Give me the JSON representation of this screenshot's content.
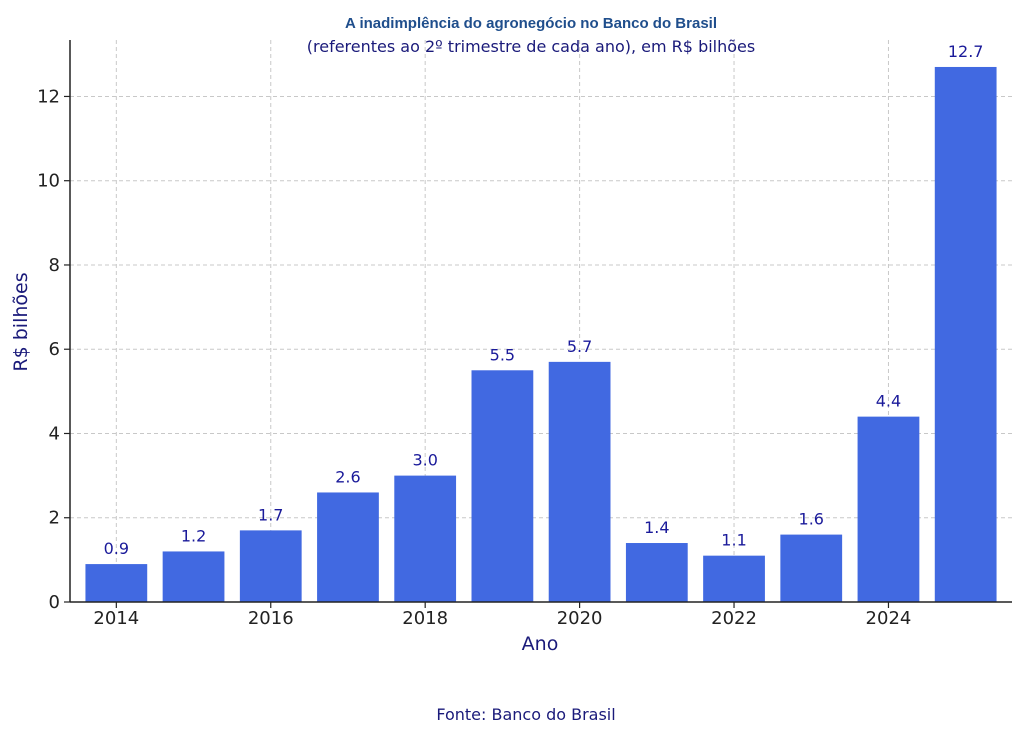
{
  "chart_data": {
    "type": "bar",
    "title": "A inadimplência do agronegócio no Banco do Brasil",
    "subtitle": "(referentes ao 2º trimestre de cada ano), em R$ bilhões",
    "xlabel": "Ano",
    "ylabel": "R$ bilhões",
    "source": "Fonte: Banco do Brasil",
    "categories": [
      2014,
      2015,
      2016,
      2017,
      2018,
      2019,
      2020,
      2021,
      2022,
      2023,
      2024,
      2025
    ],
    "values": [
      0.9,
      1.2,
      1.7,
      2.6,
      3.0,
      5.5,
      5.7,
      1.4,
      1.1,
      1.6,
      4.4,
      12.7
    ],
    "value_labels": [
      "0.9",
      "1.2",
      "1.7",
      "2.6",
      "3.0",
      "5.5",
      "5.7",
      "1.4",
      "1.1",
      "1.6",
      "4.4",
      "12.7"
    ],
    "x_ticks": [
      2014,
      2016,
      2018,
      2020,
      2022,
      2024
    ],
    "y_ticks": [
      0,
      2,
      4,
      6,
      8,
      10,
      12
    ],
    "ylim": [
      0,
      13.34
    ],
    "xlim": [
      2013.4,
      2025.6
    ],
    "grid": true,
    "bar_color": "#4169e1"
  }
}
